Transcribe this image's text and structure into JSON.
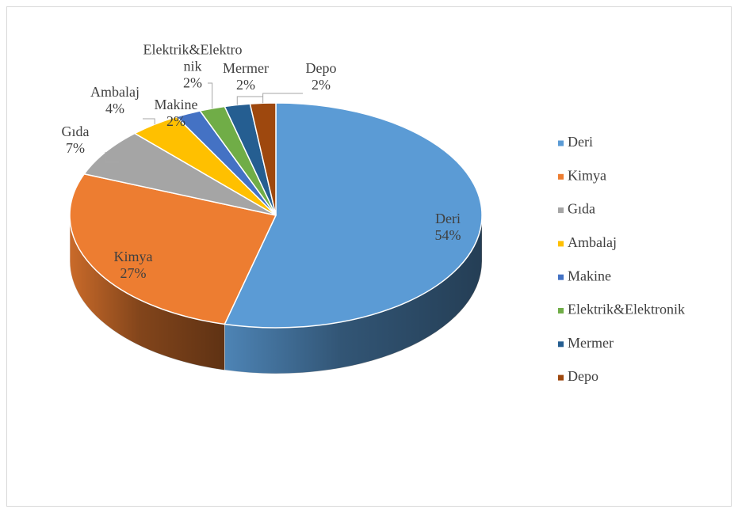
{
  "chart_data": {
    "type": "pie",
    "categories": [
      "Deri",
      "Kimya",
      "Gıda",
      "Ambalaj",
      "Makine",
      "Elektrik&Elektronik",
      "Mermer",
      "Depo"
    ],
    "values": [
      54,
      27,
      7,
      4,
      2,
      2,
      2,
      2
    ],
    "value_labels": [
      "54%",
      "27%",
      "7%",
      "4%",
      "2%",
      "2%",
      "2%",
      "2%"
    ],
    "colors": [
      "#5b9bd5",
      "#ed7d31",
      "#a5a5a5",
      "#ffc000",
      "#4472c4",
      "#70ad47",
      "#255e91",
      "#9e480e"
    ],
    "legend": "right"
  }
}
